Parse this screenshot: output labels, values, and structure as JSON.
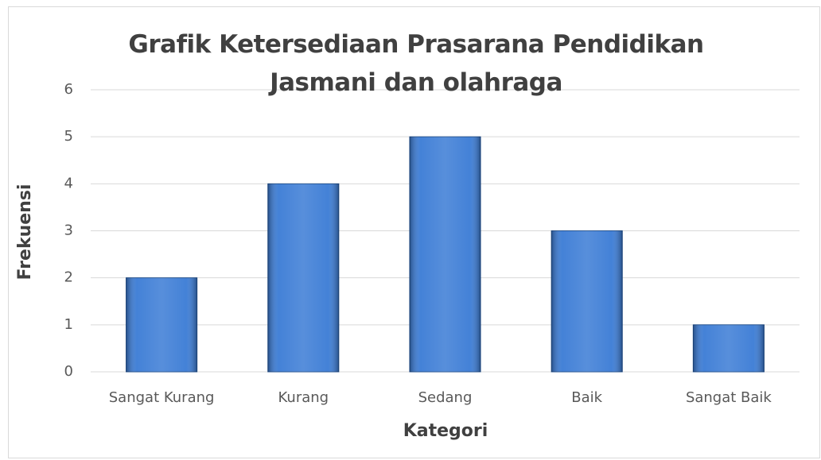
{
  "chart_data": {
    "type": "bar",
    "title": "Grafik Ketersediaan Prasarana Pendidikan Jasmani dan olahraga",
    "x_label": "Kategori",
    "y_label": "Frekuensi",
    "categories": [
      "Sangat Kurang",
      "Kurang",
      "Sedang",
      "Baik",
      "Sangat Baik"
    ],
    "values": [
      2,
      4,
      5,
      3,
      1
    ],
    "color": "#3a7bd5",
    "ylim": [
      0,
      6
    ],
    "yticks": [
      0,
      1,
      2,
      3,
      4,
      5,
      6
    ],
    "grid": true
  }
}
